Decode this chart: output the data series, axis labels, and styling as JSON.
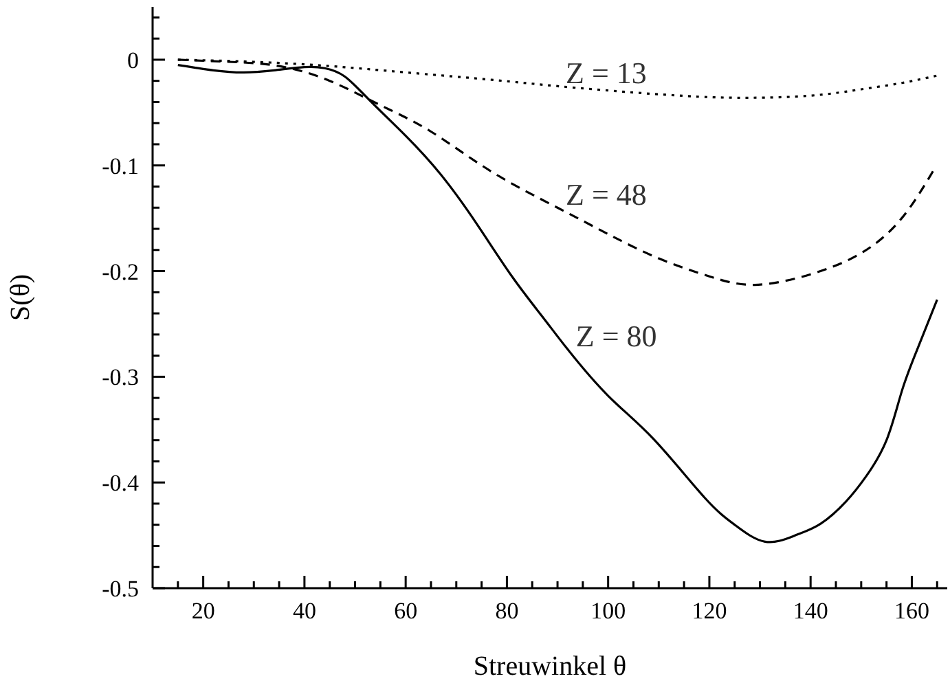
{
  "chart_data": {
    "type": "line",
    "xlabel": "Streuwinkel θ",
    "ylabel": "S(θ)",
    "xlim": [
      10,
      167
    ],
    "ylim": [
      -0.5,
      0.05
    ],
    "xticks": [
      {
        "value": 15,
        "label": null
      },
      20,
      {
        "value": 25,
        "label": null
      },
      {
        "value": 30,
        "label": null
      },
      {
        "value": 35,
        "label": null
      },
      40,
      {
        "value": 45,
        "label": null
      },
      {
        "value": 50,
        "label": null
      },
      {
        "value": 55,
        "label": null
      },
      60,
      {
        "value": 65,
        "label": null
      },
      {
        "value": 70,
        "label": null
      },
      {
        "value": 75,
        "label": null
      },
      80,
      {
        "value": 85,
        "label": null
      },
      {
        "value": 90,
        "label": null
      },
      {
        "value": 95,
        "label": null
      },
      100,
      {
        "value": 105,
        "label": null
      },
      {
        "value": 110,
        "label": null
      },
      {
        "value": 115,
        "label": null
      },
      120,
      {
        "value": 125,
        "label": null
      },
      {
        "value": 130,
        "label": null
      },
      {
        "value": 135,
        "label": null
      },
      140,
      {
        "value": 145,
        "label": null
      },
      {
        "value": 150,
        "label": null
      },
      {
        "value": 155,
        "label": null
      },
      160,
      {
        "value": 165,
        "label": null
      }
    ],
    "yticks": [
      {
        "value": 0.04,
        "label": null
      },
      {
        "value": 0.02,
        "label": null
      },
      0,
      {
        "value": -0.02,
        "label": null
      },
      {
        "value": -0.04,
        "label": null
      },
      {
        "value": -0.06,
        "label": null
      },
      {
        "value": -0.08,
        "label": null
      },
      -0.1,
      {
        "value": -0.12,
        "label": null
      },
      {
        "value": -0.14,
        "label": null
      },
      {
        "value": -0.16,
        "label": null
      },
      {
        "value": -0.18,
        "label": null
      },
      -0.2,
      {
        "value": -0.22,
        "label": null
      },
      {
        "value": -0.24,
        "label": null
      },
      {
        "value": -0.26,
        "label": null
      },
      {
        "value": -0.28,
        "label": null
      },
      -0.3,
      {
        "value": -0.32,
        "label": null
      },
      {
        "value": -0.34,
        "label": null
      },
      {
        "value": -0.36,
        "label": null
      },
      {
        "value": -0.38,
        "label": null
      },
      -0.4,
      {
        "value": -0.42,
        "label": null
      },
      {
        "value": -0.44,
        "label": null
      },
      {
        "value": -0.46,
        "label": null
      },
      {
        "value": -0.48,
        "label": null
      },
      -0.5
    ],
    "series": [
      {
        "name": "Z = 13",
        "color": "#000000",
        "line_style": "dotted",
        "x": [
          15,
          30,
          45,
          60,
          77,
          90,
          105,
          118,
          128,
          140,
          150,
          158,
          165
        ],
        "values": [
          0,
          -0.002,
          -0.006,
          -0.012,
          -0.019,
          -0.025,
          -0.031,
          -0.035,
          -0.036,
          -0.034,
          -0.028,
          -0.022,
          -0.015
        ]
      },
      {
        "name": "Z = 48",
        "color": "#000000",
        "line_style": "dashed",
        "x": [
          15,
          25,
          35,
          45,
          55,
          65,
          77,
          90,
          100,
          110,
          120,
          129,
          140,
          150,
          158,
          164.5
        ],
        "values": [
          0,
          -0.002,
          -0.006,
          -0.02,
          -0.043,
          -0.068,
          -0.106,
          -0.14,
          -0.165,
          -0.188,
          -0.205,
          -0.213,
          -0.203,
          -0.183,
          -0.15,
          -0.103
        ]
      },
      {
        "name": "Z = 80",
        "color": "#000000",
        "line_style": "solid",
        "x": [
          15,
          22,
          28,
          34,
          40,
          44,
          48,
          53,
          60,
          67,
          74,
          81,
          87,
          92,
          100,
          109,
          119,
          125,
          131,
          137,
          142,
          147,
          151,
          155,
          158,
          161,
          165
        ],
        "values": [
          -0.005,
          -0.01,
          -0.012,
          -0.01,
          -0.007,
          -0.008,
          -0.016,
          -0.039,
          -0.072,
          -0.109,
          -0.155,
          -0.205,
          -0.243,
          -0.274,
          -0.318,
          -0.359,
          -0.414,
          -0.44,
          -0.456,
          -0.45,
          -0.439,
          -0.418,
          -0.394,
          -0.36,
          -0.314,
          -0.275,
          -0.227
        ]
      }
    ]
  }
}
